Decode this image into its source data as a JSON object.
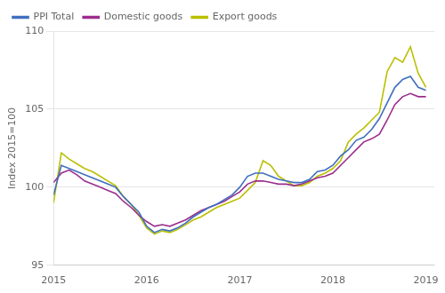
{
  "chart_data": {
    "type": "line",
    "y_label": "Index 2015=100",
    "x": [
      2015,
      2015.0833333333,
      2015.1666666667,
      2015.25,
      2015.3333333333,
      2015.4166666667,
      2015.5,
      2015.5833333333,
      2015.6666666667,
      2015.75,
      2015.8333333333,
      2015.9166666667,
      2016,
      2016.0833333333,
      2016.1666666667,
      2016.25,
      2016.3333333333,
      2016.4166666667,
      2016.5,
      2016.5833333333,
      2016.6666666667,
      2016.75,
      2016.8333333333,
      2016.9166666667,
      2017,
      2017.0833333333,
      2017.1666666667,
      2017.25,
      2017.3333333333,
      2017.4166666667,
      2017.5,
      2017.5833333333,
      2017.6666666667,
      2017.75,
      2017.8333333333,
      2017.9166666667,
      2018,
      2018.0833333333,
      2018.1666666667,
      2018.25,
      2018.3333333333,
      2018.4166666667,
      2018.5,
      2018.5833333333,
      2018.6666666667,
      2018.75,
      2018.8333333333,
      2018.9166666667,
      2019
    ],
    "series": [
      {
        "name": "PPI Total",
        "color": "#3F6FBF",
        "values": [
          99.5,
          101.4,
          101.2,
          101.0,
          100.8,
          100.6,
          100.4,
          100.2,
          100.0,
          99.4,
          98.9,
          98.4,
          97.5,
          97.1,
          97.3,
          97.2,
          97.4,
          97.7,
          98.1,
          98.4,
          98.7,
          98.9,
          99.2,
          99.5,
          100.0,
          100.7,
          100.9,
          100.9,
          100.7,
          100.5,
          100.4,
          100.3,
          100.3,
          100.5,
          101.0,
          101.1,
          101.4,
          102.0,
          102.4,
          103.0,
          103.2,
          103.7,
          104.4,
          105.4,
          106.4,
          106.9,
          107.1,
          106.4,
          106.2
        ]
      },
      {
        "name": "Domestic goods",
        "color": "#9B2D8E",
        "values": [
          100.3,
          100.9,
          101.1,
          100.8,
          100.4,
          100.2,
          100.0,
          99.8,
          99.6,
          99.1,
          98.7,
          98.2,
          97.8,
          97.5,
          97.6,
          97.5,
          97.7,
          97.9,
          98.2,
          98.5,
          98.7,
          98.9,
          99.1,
          99.4,
          99.7,
          100.2,
          100.4,
          100.4,
          100.3,
          100.2,
          100.2,
          100.1,
          100.2,
          100.4,
          100.6,
          100.7,
          100.9,
          101.4,
          101.9,
          102.4,
          102.9,
          103.1,
          103.4,
          104.3,
          105.3,
          105.8,
          106.0,
          105.8,
          105.8
        ]
      },
      {
        "name": "Export goods",
        "color": "#BBBF00",
        "values": [
          99.0,
          102.2,
          101.8,
          101.5,
          101.2,
          101.0,
          100.7,
          100.4,
          100.1,
          99.4,
          98.9,
          98.2,
          97.4,
          97.0,
          97.2,
          97.1,
          97.3,
          97.6,
          97.9,
          98.1,
          98.4,
          98.7,
          98.9,
          99.1,
          99.3,
          99.8,
          100.3,
          101.7,
          101.4,
          100.7,
          100.4,
          100.1,
          100.1,
          100.3,
          100.7,
          100.9,
          101.2,
          101.7,
          102.9,
          103.4,
          103.8,
          104.3,
          104.8,
          107.4,
          108.3,
          108.0,
          109.0,
          107.3,
          106.4
        ]
      }
    ],
    "xlim": [
      2015.0,
      2019.09
    ],
    "xticks": [
      2015,
      2016,
      2017,
      2018,
      2019
    ],
    "ylim": [
      95,
      110
    ],
    "yticks": [
      95,
      100,
      105,
      110
    ],
    "grid": "y",
    "legend": "upper left"
  }
}
